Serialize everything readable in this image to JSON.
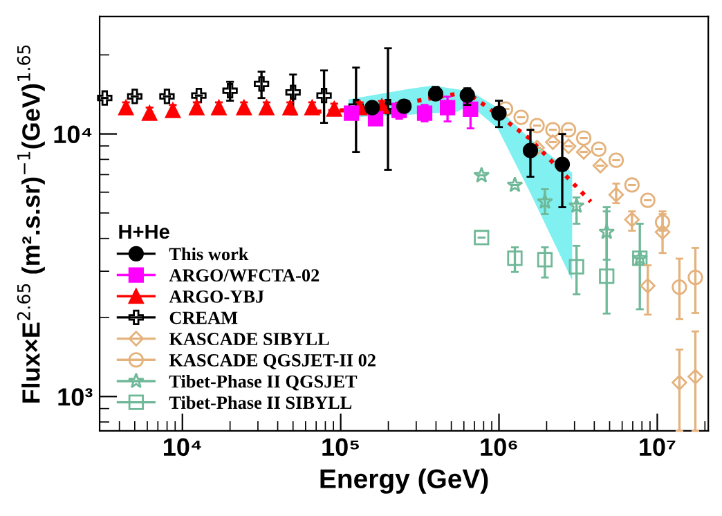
{
  "chart_data": {
    "type": "scatter",
    "xlabel": "Energy (GeV)",
    "ylabel": "Flux×E$^{2.65}$ (m².s.sr)$^{−1}$(GeV)$^{1.65}$",
    "legend_title": "H+He",
    "legend": "bottom left",
    "log": "xy",
    "grid": false,
    "xlim": [
      3000,
      21000000
    ],
    "ylim": [
      740,
      28000
    ],
    "xticks": [
      {
        "value": 10000,
        "label": "10⁴"
      },
      {
        "value": 100000,
        "label": "10⁵"
      },
      {
        "value": 1000000,
        "label": "10⁶"
      },
      {
        "value": 10000000,
        "label": "10⁷"
      }
    ],
    "yticks": [
      {
        "value": 1000,
        "label": "10³"
      },
      {
        "value": 10000,
        "label": "10⁴"
      }
    ],
    "series": [
      {
        "type": "line",
        "color": "#ff0000",
        "line_style": "dotted",
        "marker": "none",
        "x": [
          71000,
          112000,
          275000,
          380000,
          540000,
          660000,
          980000,
          1550000,
          2900000,
          3800000
        ],
        "values": [
          12140,
          12340,
          13210,
          13700,
          14210,
          14060,
          11850,
          9640,
          6540,
          5520
        ],
        "lower": [
          null,
          11570,
          11850,
          11990,
          12140,
          12860,
          10500,
          6090,
          2770,
          null
        ],
        "upper": [
          null,
          13540,
          14870,
          15280,
          14800,
          14560,
          12590,
          9640,
          7120,
          null
        ]
      },
      {
        "name": "This work",
        "color": "#000000",
        "marker": "circle",
        "x": [
          158000,
          251000,
          398000,
          631000,
          1000000,
          1580000,
          2510000
        ],
        "values": [
          12590,
          12740,
          14210,
          14040,
          12000,
          8650,
          7660
        ],
        "errors": [
          400,
          400,
          [
            13540,
            15100
          ],
          [
            12900,
            14920
          ],
          [
            10620,
            13380
          ],
          [
            6870,
            10370
          ],
          [
            5260,
            10000
          ]
        ]
      },
      {
        "name": "ARGO/WFCTA-02",
        "color": "#ff00ff",
        "marker": "square",
        "x": [
          117000,
          166000,
          234000,
          339000,
          473000,
          661000
        ],
        "values": [
          12000,
          11430,
          12290,
          12000,
          12590,
          12430
        ],
        "errors": [
          400,
          400,
          [
            11430,
            13060
          ],
          [
            11160,
            12900
          ],
          [
            11160,
            13870
          ],
          [
            10500,
            13060
          ]
        ]
      },
      {
        "name": "ARGO-YBJ",
        "color": "#ff0000",
        "marker": "triangle",
        "x": [
          4400,
          6200,
          8700,
          12300,
          17000,
          24500,
          34000,
          48000,
          66000,
          91000,
          132000,
          182000
        ],
        "values": [
          12590,
          12000,
          12290,
          12590,
          12590,
          12590,
          12590,
          12590,
          12590,
          12440,
          12590,
          12740
        ],
        "errors": [
          600,
          600,
          600,
          600,
          600,
          600,
          600,
          600,
          600,
          600,
          600,
          600
        ]
      },
      {
        "name": "CREAM",
        "color": "#000000",
        "marker": "cross",
        "x": [
          3230,
          5000,
          7990,
          12700,
          20000,
          31600,
          50000,
          78500,
          125000,
          199000
        ],
        "values": [
          13700,
          13900,
          13900,
          14000,
          14600,
          15500,
          14400,
          14000,
          12700,
          12700
        ],
        "errors": [
          null,
          null,
          null,
          null,
          [
            13380,
            15800
          ],
          [
            13700,
            17260
          ],
          [
            11850,
            16830
          ],
          [
            11020,
            17450
          ],
          [
            8540,
            17890
          ],
          [
            7300,
            21200
          ]
        ]
      },
      {
        "name": "KASCADE SIBYLL",
        "color": "#e4b27c",
        "marker": "diamond",
        "x": [
          1740000,
          2190000,
          2750000,
          3430000,
          4370000,
          5500000,
          6920000,
          8710000,
          10800000,
          13800000,
          17400000
        ],
        "values": [
          8860,
          9300,
          8970,
          8540,
          7570,
          5870,
          4720,
          2640,
          4230,
          1130,
          1190
        ],
        "errors": [
          null,
          null,
          null,
          null,
          null,
          [
            5450,
            6470
          ],
          [
            4280,
            5070
          ],
          [
            2050,
            3160
          ],
          [
            3520,
            4950
          ],
          [
            740,
            1510
          ],
          [
            740,
            1770
          ]
        ]
      },
      {
        "name": "KASCADE QGSJET-II 02",
        "color": "#e4b27c",
        "marker": "circle",
        "x": [
          1100000,
          1380000,
          1740000,
          2190000,
          2750000,
          3430000,
          4270000,
          5500000,
          6920000,
          8710000,
          10800000,
          13800000,
          17400000
        ],
        "values": [
          12440,
          11570,
          10760,
          10370,
          10370,
          9640,
          8750,
          7940,
          6390,
          5590,
          4610,
          2610,
          2840
        ],
        "errors": [
          null,
          null,
          null,
          null,
          null,
          null,
          null,
          null,
          null,
          null,
          [
            4280,
            5070
          ],
          [
            1970,
            3350
          ],
          [
            2080,
            3680
          ]
        ]
      },
      {
        "name": "Tibet-Phase II QGSJET",
        "color": "#6fb898",
        "marker": "star",
        "x": [
          776000,
          1260000,
          1950000,
          3090000,
          4790000,
          7760000
        ],
        "values": [
          6950,
          6390,
          5520,
          5320,
          4230,
          3360
        ],
        "errors": [
          null,
          null,
          [
            4950,
            6160
          ],
          [
            4550,
            5730
          ],
          [
            3320,
            5070
          ],
          null
        ]
      },
      {
        "name": "Tibet-Phase II SIBYLL",
        "color": "#6fb898",
        "marker": "square",
        "x": [
          776000,
          1260000,
          1950000,
          3090000,
          4790000,
          7760000
        ],
        "values": [
          4030,
          3360,
          3320,
          3120,
          2870,
          3360
        ],
        "errors": [
          null,
          [
            2980,
            3700
          ],
          [
            2840,
            3700
          ],
          [
            2450,
            3750
          ],
          [
            2070,
            5260
          ],
          [
            2150,
            4550
          ]
        ]
      }
    ]
  }
}
